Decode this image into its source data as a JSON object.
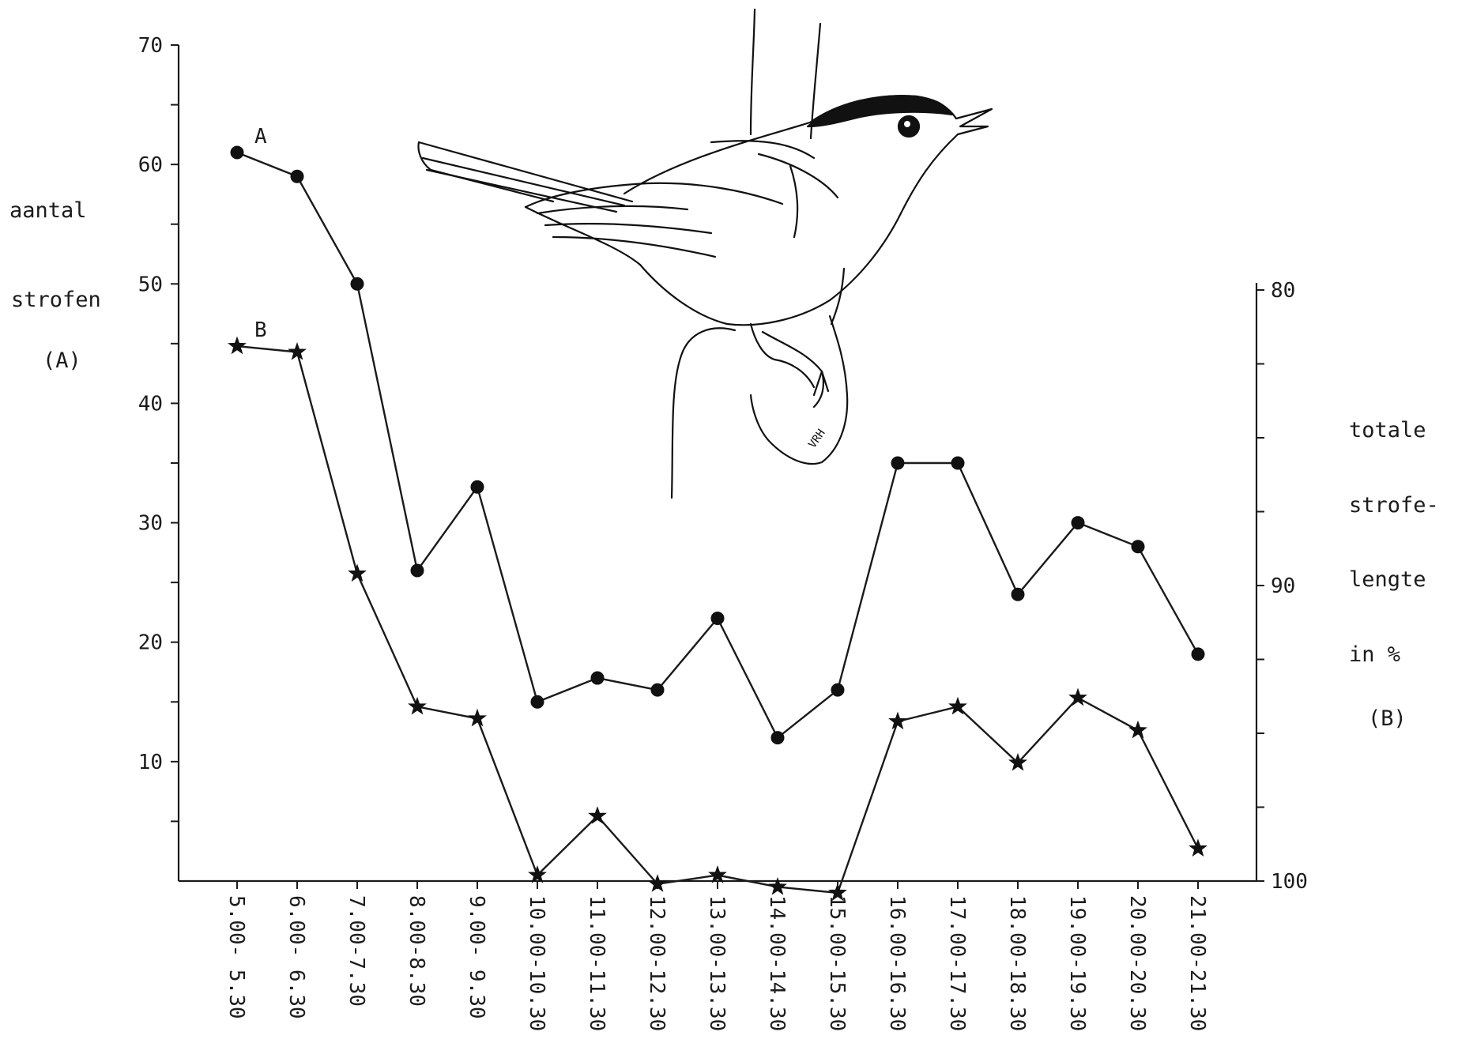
{
  "chart_data": {
    "type": "line",
    "categories": [
      "5.00- 5.30",
      "6.00- 6.30",
      "7.00-7.30",
      "8.00-8.30",
      "9.00- 9.30",
      "10.00-10.30",
      "11.00-11.30",
      "12.00-12.30",
      "13.00-13.30",
      "14.00-14.30",
      "15.00-15.30",
      "16.00-16.30",
      "17.00-17.30",
      "18.00-18.30",
      "19.00-19.30",
      "20.00-20.30",
      "21.00-21.30"
    ],
    "left_axis": {
      "label_lines": [
        "aantal",
        "strofen",
        "(A)"
      ],
      "ylim": [
        0,
        70
      ],
      "tick_labels": [
        "10",
        "20",
        "30",
        "40",
        "50",
        "60",
        "70"
      ],
      "tick_values": [
        10,
        20,
        30,
        40,
        50,
        60,
        70
      ]
    },
    "right_axis": {
      "label_lines": [
        "totale",
        "strofe-",
        "lengte",
        "in %",
        "(B)"
      ],
      "ylim": [
        80,
        100
      ],
      "inverted": true,
      "tick_labels": [
        "80",
        "90",
        "100"
      ],
      "tick_values": [
        80,
        90,
        100
      ]
    },
    "series": [
      {
        "name": "A",
        "axis": "left",
        "marker": "circle",
        "values": [
          61,
          59,
          50,
          26,
          33,
          15,
          17,
          16,
          22,
          12,
          16,
          35,
          35,
          24,
          30,
          28,
          19
        ]
      },
      {
        "name": "B",
        "axis": "right",
        "marker": "star",
        "values": [
          81.9,
          82.1,
          89.6,
          94.1,
          94.5,
          99.8,
          97.8,
          100.1,
          99.8,
          100.2,
          100.4,
          94.6,
          94.1,
          96.0,
          93.8,
          94.9,
          98.9
        ]
      }
    ],
    "grid": false
  },
  "illustration": {
    "subject": "bird-on-branch-drawing",
    "signature": "VRH"
  }
}
